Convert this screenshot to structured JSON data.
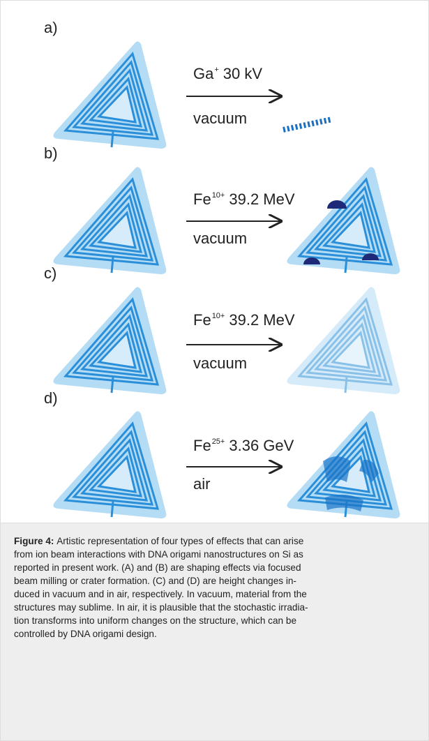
{
  "figure": {
    "panels": [
      {
        "label": "a)",
        "ion": "Ga",
        "charge": "+",
        "energy": "30 kV",
        "medium": "vacuum"
      },
      {
        "label": "b)",
        "ion": "Fe",
        "charge": "10+",
        "energy": "39.2 MeV",
        "medium": "vacuum"
      },
      {
        "label": "c)",
        "ion": "Fe",
        "charge": "10+",
        "energy": "39.2 MeV",
        "medium": "vacuum"
      },
      {
        "label": "d)",
        "ion": "Fe",
        "charge": "25+",
        "energy": "3.36 GeV",
        "medium": "air"
      }
    ]
  },
  "caption": {
    "label": "Figure 4:",
    "lines": [
      "Artistic representation of four types of effects that can arise",
      "from ion beam interactions with DNA origami nanostructures on Si as",
      "reported in present work. (A) and (B) are shaping effects via focused",
      "beam milling or crater formation. (C) and (D) are height changes in-",
      "duced in vacuum and in air, respectively. In vacuum, material from the",
      "structures may sublime. In air, it is plausible that the stochastic irradia-",
      "tion transforms into uniform changes on the structure, which can be",
      "controlled by DNA origami design."
    ]
  }
}
